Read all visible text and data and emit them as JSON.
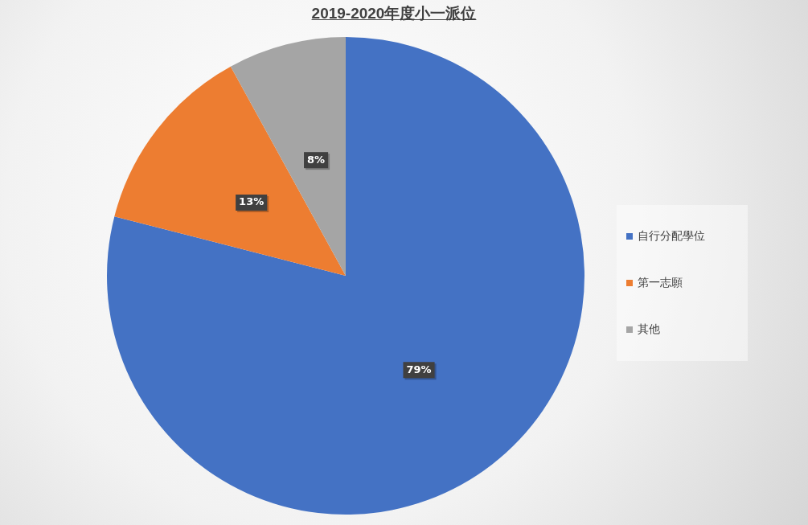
{
  "chart_data": {
    "type": "pie",
    "title": "2019-2020年度小一派位",
    "categories": [
      "自行分配學位",
      "第一志願",
      "其他"
    ],
    "values": [
      79,
      13,
      8
    ],
    "colors": [
      "#4472c4",
      "#ed7d31",
      "#a5a5a5"
    ],
    "value_labels": [
      "79%",
      "13%",
      "8%"
    ],
    "legend": "right"
  }
}
